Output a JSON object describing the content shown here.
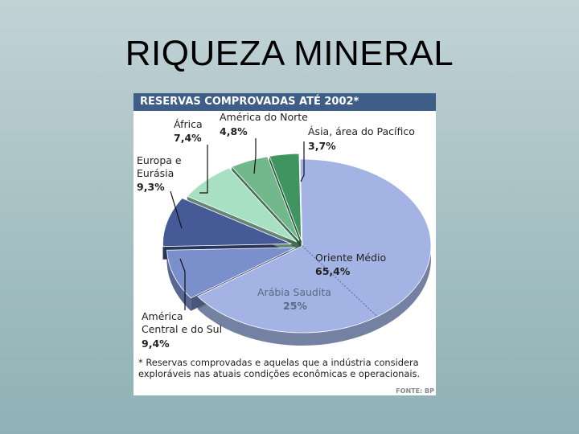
{
  "slide": {
    "title": "RIQUEZA MINERAL"
  },
  "chart_data": {
    "type": "pie",
    "title": "RESERVAS COMPROVADAS ATÉ 2002*",
    "slices": [
      {
        "name": "Oriente Médio",
        "value": 65.4,
        "label": "65,4%",
        "color": "#a3b3e3"
      },
      {
        "name": "América Central e do Sul",
        "value": 9.4,
        "label": "9,4%",
        "color": "#7a8fcc"
      },
      {
        "name": "Europa e Eurásia",
        "value": 9.3,
        "label": "9,3%",
        "color": "#455a96"
      },
      {
        "name": "África",
        "value": 7.4,
        "label": "7,4%",
        "color": "#a8e0c4"
      },
      {
        "name": "América do Norte",
        "value": 4.8,
        "label": "4,8%",
        "color": "#72b88c"
      },
      {
        "name": "Ásia, área do Pacífico",
        "value": 3.7,
        "label": "3,7%",
        "color": "#3f9460"
      }
    ],
    "sub_slice": {
      "name": "Arábia Saudita",
      "value": 25,
      "label": "25%"
    },
    "footnote": "* Reservas comprovadas e aquelas que a indústria considera exploráveis nas atuais condições econômicas e operacionais.",
    "source": "FONTE: BP"
  }
}
